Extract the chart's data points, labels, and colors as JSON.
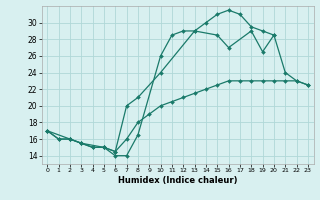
{
  "xlabel": "Humidex (Indice chaleur)",
  "bg_color": "#d8f0f0",
  "grid_color": "#b0d8d8",
  "line_color": "#1a7a6a",
  "xlim": [
    -0.5,
    23.5
  ],
  "ylim": [
    13.0,
    32.0
  ],
  "xticks": [
    0,
    1,
    2,
    3,
    4,
    5,
    6,
    7,
    8,
    9,
    10,
    11,
    12,
    13,
    14,
    15,
    16,
    17,
    18,
    19,
    20,
    21,
    22,
    23
  ],
  "yticks": [
    14,
    16,
    18,
    20,
    22,
    24,
    26,
    28,
    30
  ],
  "line1_x": [
    0,
    1,
    2,
    3,
    4,
    5,
    6,
    7,
    8,
    10,
    11,
    12,
    13,
    14,
    15,
    16,
    17,
    18,
    19,
    20
  ],
  "line1_y": [
    17,
    16,
    16,
    15.5,
    15,
    15,
    14,
    14,
    16.5,
    26,
    28.5,
    29,
    29,
    30,
    31,
    31.5,
    31,
    29.5,
    29,
    28.5
  ],
  "line2_x": [
    0,
    1,
    2,
    3,
    4,
    5,
    6,
    7,
    8,
    9,
    10,
    11,
    12,
    13,
    14,
    15,
    16,
    17,
    18,
    19,
    20,
    21,
    22,
    23
  ],
  "line2_y": [
    17,
    16,
    16,
    15.5,
    15,
    15,
    14.5,
    16,
    18,
    19,
    20,
    20.5,
    21,
    21.5,
    22,
    22.5,
    23,
    23,
    23,
    23,
    23,
    23,
    23,
    22.5
  ],
  "line3_x": [
    0,
    2,
    3,
    5,
    6,
    7,
    8,
    10,
    13,
    15,
    16,
    18,
    19,
    20,
    21,
    22,
    23
  ],
  "line3_y": [
    17,
    16,
    15.5,
    15,
    14.5,
    20,
    21,
    24,
    29,
    28.5,
    27,
    29,
    26.5,
    28.5,
    24,
    23,
    22.5
  ]
}
